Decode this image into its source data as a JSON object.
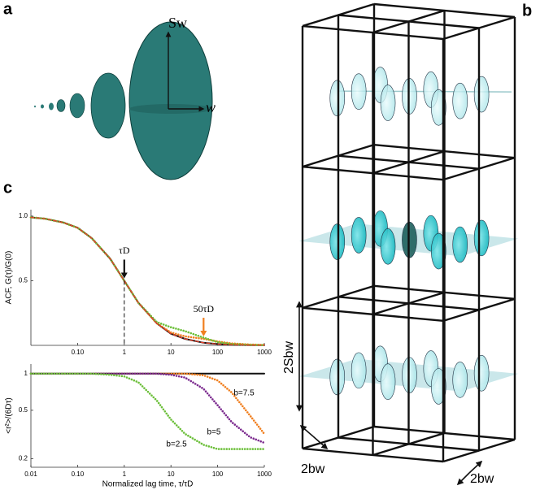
{
  "panel_labels": [
    "a",
    "b",
    "c"
  ],
  "panel_a": {
    "long_axis": "Sw",
    "short_axis": "w"
  },
  "panel_b": {
    "height": "2Sbw",
    "width_front": "2bw",
    "width_side": "2bw"
  },
  "chart_data": [
    {
      "type": "line",
      "ylabel": "ACF, G(τ)/G(0)",
      "xscale": "log",
      "x": [
        0.01,
        0.02,
        0.05,
        0.1,
        0.2,
        0.5,
        1,
        2,
        5,
        10,
        20,
        50,
        100,
        200,
        500,
        1000
      ],
      "series": [
        {
          "color": "#111111",
          "style": "line",
          "values": [
            0.99,
            0.98,
            0.95,
            0.91,
            0.83,
            0.67,
            0.5,
            0.33,
            0.17,
            0.09,
            0.05,
            0.02,
            0.01,
            0.005,
            0.002,
            0.001
          ]
        },
        {
          "color": "#f07f1f",
          "style": "dotted",
          "values": [
            0.99,
            0.98,
            0.95,
            0.91,
            0.83,
            0.67,
            0.5,
            0.33,
            0.17,
            0.1,
            0.07,
            0.05,
            0.03,
            0.015,
            0.006,
            0.003
          ]
        },
        {
          "color": "#6cbf3a",
          "style": "dotted",
          "values": [
            0.99,
            0.98,
            0.95,
            0.91,
            0.83,
            0.67,
            0.5,
            0.33,
            0.18,
            0.14,
            0.11,
            0.06,
            0.025,
            0.01,
            0.004,
            0.002
          ]
        },
        {
          "color": "#e8402a",
          "style": "dashed",
          "values": [
            0.99,
            0.98,
            0.95,
            0.91,
            0.83,
            0.67,
            0.5,
            0.33,
            0.17,
            0.09,
            0.05,
            0.02,
            0.01,
            0.005,
            0.002,
            0.001
          ]
        }
      ],
      "annotations": [
        {
          "text": "τD",
          "x": 1,
          "y": 0.5,
          "color": "#111111",
          "vline": true
        },
        {
          "text": "50τD",
          "x": 50,
          "y": 0.05,
          "color": "#f07f1f",
          "vline": false
        }
      ],
      "xlim": [
        0.01,
        1000
      ],
      "ylim": [
        0,
        1.05
      ],
      "xticks": [
        {
          "value": 0.1,
          "label": "0.10"
        },
        1,
        10,
        100,
        1000
      ],
      "yticks": [
        0.5,
        {
          "value": 1,
          "label": "1.0"
        }
      ]
    },
    {
      "type": "line",
      "xlabel": "Normalized lag time, τ/τD",
      "ylabel": "<r²>/(6Dτ)",
      "xscale": "log",
      "yscale": "log",
      "x": [
        0.01,
        0.02,
        0.05,
        0.1,
        0.2,
        0.5,
        1,
        2,
        5,
        10,
        20,
        50,
        100,
        200,
        500,
        1000
      ],
      "series": [
        {
          "color": "#111111",
          "style": "line",
          "values": [
            1,
            1,
            1,
            1,
            1,
            1,
            1,
            1,
            1,
            1,
            1,
            1,
            1,
            1,
            1,
            1
          ]
        },
        {
          "name": "b=7.5",
          "color": "#f07f1f",
          "style": "dotted",
          "values": [
            1,
            1,
            1,
            1,
            1,
            1,
            1,
            1,
            1,
            1,
            1,
            0.97,
            0.88,
            0.7,
            0.45,
            0.32
          ]
        },
        {
          "name": "b=5",
          "color": "#7b2a8e",
          "style": "dotted",
          "values": [
            1,
            1,
            1,
            1,
            1,
            1,
            1,
            1,
            1,
            0.98,
            0.93,
            0.75,
            0.55,
            0.4,
            0.3,
            0.27
          ]
        },
        {
          "name": "b=2.5",
          "color": "#6cbf3a",
          "style": "dotted",
          "values": [
            1,
            1,
            1,
            1,
            1,
            0.98,
            0.95,
            0.85,
            0.6,
            0.42,
            0.32,
            0.26,
            0.24,
            0.24,
            0.24,
            0.24
          ]
        }
      ],
      "xlim": [
        0.01,
        1000
      ],
      "ylim": [
        0.17,
        1.2
      ],
      "xticks": [
        0.01,
        {
          "value": 0.1,
          "label": "0.10"
        },
        1,
        10,
        100,
        1000
      ],
      "yticks": [
        0.2,
        0.5,
        1
      ]
    }
  ]
}
